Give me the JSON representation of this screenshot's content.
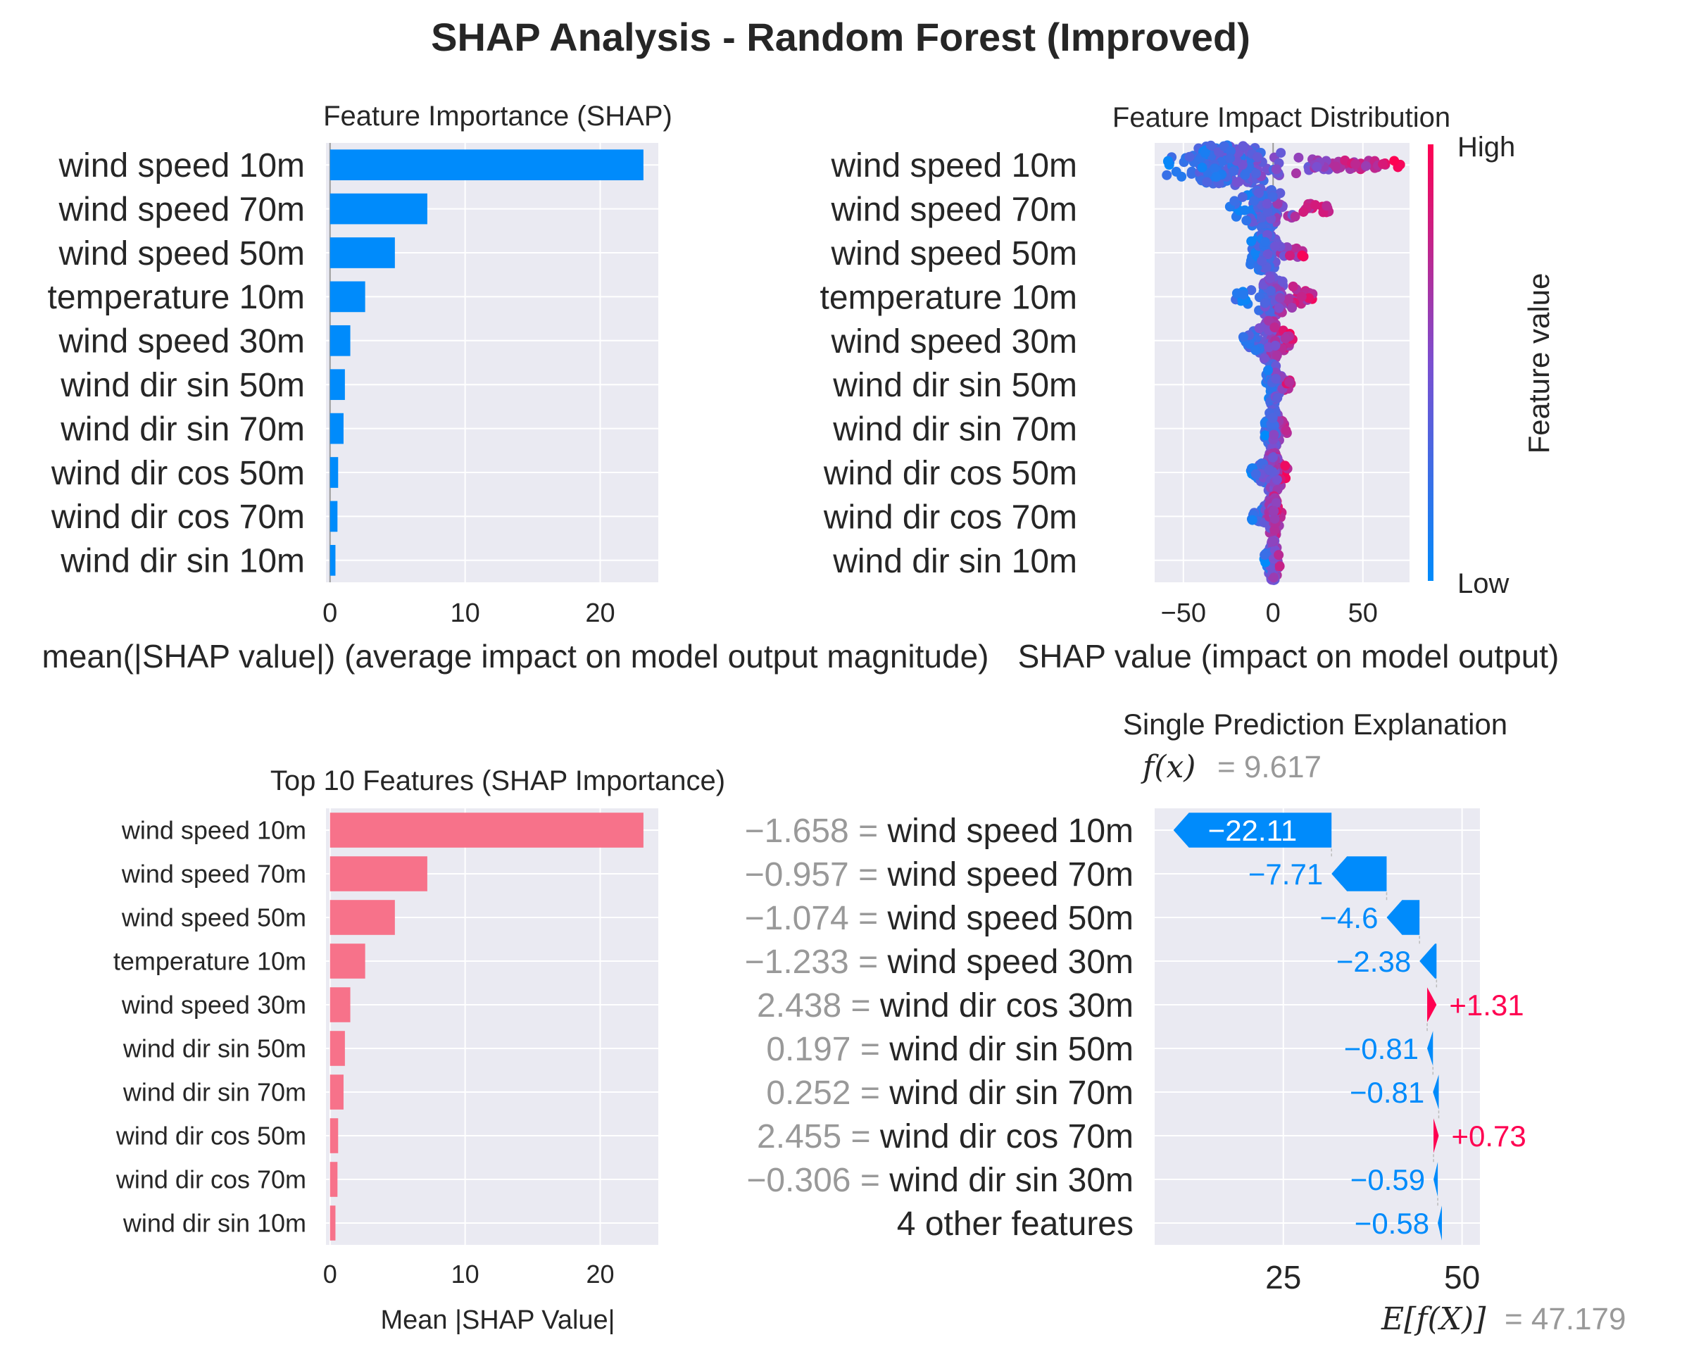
{
  "figure_title": "SHAP Analysis - Random Forest (Improved)",
  "colors": {
    "shap_blue": "#008BFB",
    "shap_red": "#FF0051",
    "pink_bar": "#F7728A",
    "panel_bg": "#EAEAF2",
    "grid": "#FFFFFF",
    "text": "#262626",
    "grey_text": "#999999"
  },
  "chart_data": [
    {
      "id": "feature_importance",
      "type": "bar",
      "orientation": "horizontal",
      "title": "Feature Importance (SHAP)",
      "xlabel": "mean(|SHAP value|) (average impact on model output magnitude)",
      "categories": [
        "wind speed 10m",
        "wind speed 70m",
        "wind speed 50m",
        "temperature 10m",
        "wind speed 30m",
        "wind dir sin 50m",
        "wind dir sin 70m",
        "wind dir cos 50m",
        "wind dir cos 70m",
        "wind dir sin 10m"
      ],
      "values": [
        23.2,
        7.2,
        4.8,
        2.6,
        1.5,
        1.1,
        1.0,
        0.6,
        0.55,
        0.4
      ],
      "xlim": [
        -0.3,
        24.3
      ],
      "xticks": [
        0,
        10,
        20
      ],
      "xtick_labels": [
        "0",
        "10",
        "20"
      ]
    },
    {
      "id": "impact_distribution",
      "type": "scatter",
      "title": "Feature Impact Distribution",
      "xlabel": "SHAP value (impact on model output)",
      "categories": [
        "wind speed 10m",
        "wind speed 70m",
        "wind speed 50m",
        "temperature 10m",
        "wind speed 30m",
        "wind dir sin 50m",
        "wind dir sin 70m",
        "wind dir cos 50m",
        "wind dir cos 70m",
        "wind dir sin 10m"
      ],
      "spread": [
        {
          "min": -62,
          "max": 72,
          "center": -25
        },
        {
          "min": -25,
          "max": 32,
          "center": -5
        },
        {
          "min": -13,
          "max": 18,
          "center": -5
        },
        {
          "min": -22,
          "max": 22,
          "center": 0
        },
        {
          "min": -18,
          "max": 12,
          "center": -2
        },
        {
          "min": -4,
          "max": 10,
          "center": 0
        },
        {
          "min": -5,
          "max": 8,
          "center": 0
        },
        {
          "min": -13,
          "max": 8,
          "center": 0
        },
        {
          "min": -12,
          "max": 5,
          "center": 0
        },
        {
          "min": -5,
          "max": 4,
          "center": 0
        }
      ],
      "xlim": [
        -66,
        76
      ],
      "xticks": [
        -50,
        0,
        50
      ],
      "xtick_labels": [
        "−50",
        "0",
        "50"
      ],
      "colorbar": {
        "label": "Feature value",
        "high": "High",
        "low": "Low"
      }
    },
    {
      "id": "top10",
      "type": "bar",
      "orientation": "horizontal",
      "title": "Top 10 Features (SHAP Importance)",
      "xlabel": "Mean |SHAP Value|",
      "categories": [
        "wind speed 10m",
        "wind speed 70m",
        "wind speed 50m",
        "temperature 10m",
        "wind speed 30m",
        "wind dir sin 50m",
        "wind dir sin 70m",
        "wind dir cos 50m",
        "wind dir cos 70m",
        "wind dir sin 10m"
      ],
      "values": [
        23.2,
        7.2,
        4.8,
        2.6,
        1.5,
        1.1,
        1.0,
        0.6,
        0.55,
        0.4
      ],
      "xlim": [
        -0.3,
        24.3
      ],
      "xticks": [
        0,
        10,
        20
      ],
      "xtick_labels": [
        "0",
        "10",
        "20"
      ]
    },
    {
      "id": "waterfall",
      "type": "bar",
      "subtype": "waterfall",
      "title": "Single Prediction Explanation",
      "fx_label": "f(x)",
      "fx_value": "= 9.617",
      "ex_label": "E[f(X)]",
      "ex_value": "= 47.179",
      "prediction": 9.617,
      "expected_value": 47.179,
      "rows": [
        {
          "value_label": "−1.658 =",
          "feature": "wind speed 10m",
          "contribution": -22.11,
          "text": "−22.11"
        },
        {
          "value_label": "−0.957 =",
          "feature": "wind speed 70m",
          "contribution": -7.71,
          "text": "−7.71"
        },
        {
          "value_label": "−1.074 =",
          "feature": "wind speed 50m",
          "contribution": -4.6,
          "text": "−4.6"
        },
        {
          "value_label": "−1.233 =",
          "feature": "wind speed 30m",
          "contribution": -2.38,
          "text": "−2.38"
        },
        {
          "value_label": "2.438 =",
          "feature": "wind dir cos 30m",
          "contribution": 1.31,
          "text": "+1.31"
        },
        {
          "value_label": "0.197 =",
          "feature": "wind dir sin 50m",
          "contribution": -0.81,
          "text": "−0.81"
        },
        {
          "value_label": "0.252 =",
          "feature": "wind dir sin 70m",
          "contribution": -0.81,
          "text": "−0.81"
        },
        {
          "value_label": "2.455 =",
          "feature": "wind dir cos 70m",
          "contribution": 0.73,
          "text": "+0.73"
        },
        {
          "value_label": "−0.306 =",
          "feature": "wind dir sin 30m",
          "contribution": -0.59,
          "text": "−0.59"
        },
        {
          "value_label": "",
          "feature": "4 other features",
          "contribution": -0.58,
          "text": "−0.58"
        }
      ],
      "xlim": [
        7,
        52.5
      ],
      "xticks": [
        25,
        50
      ],
      "xtick_labels": [
        "25",
        "50"
      ]
    }
  ]
}
